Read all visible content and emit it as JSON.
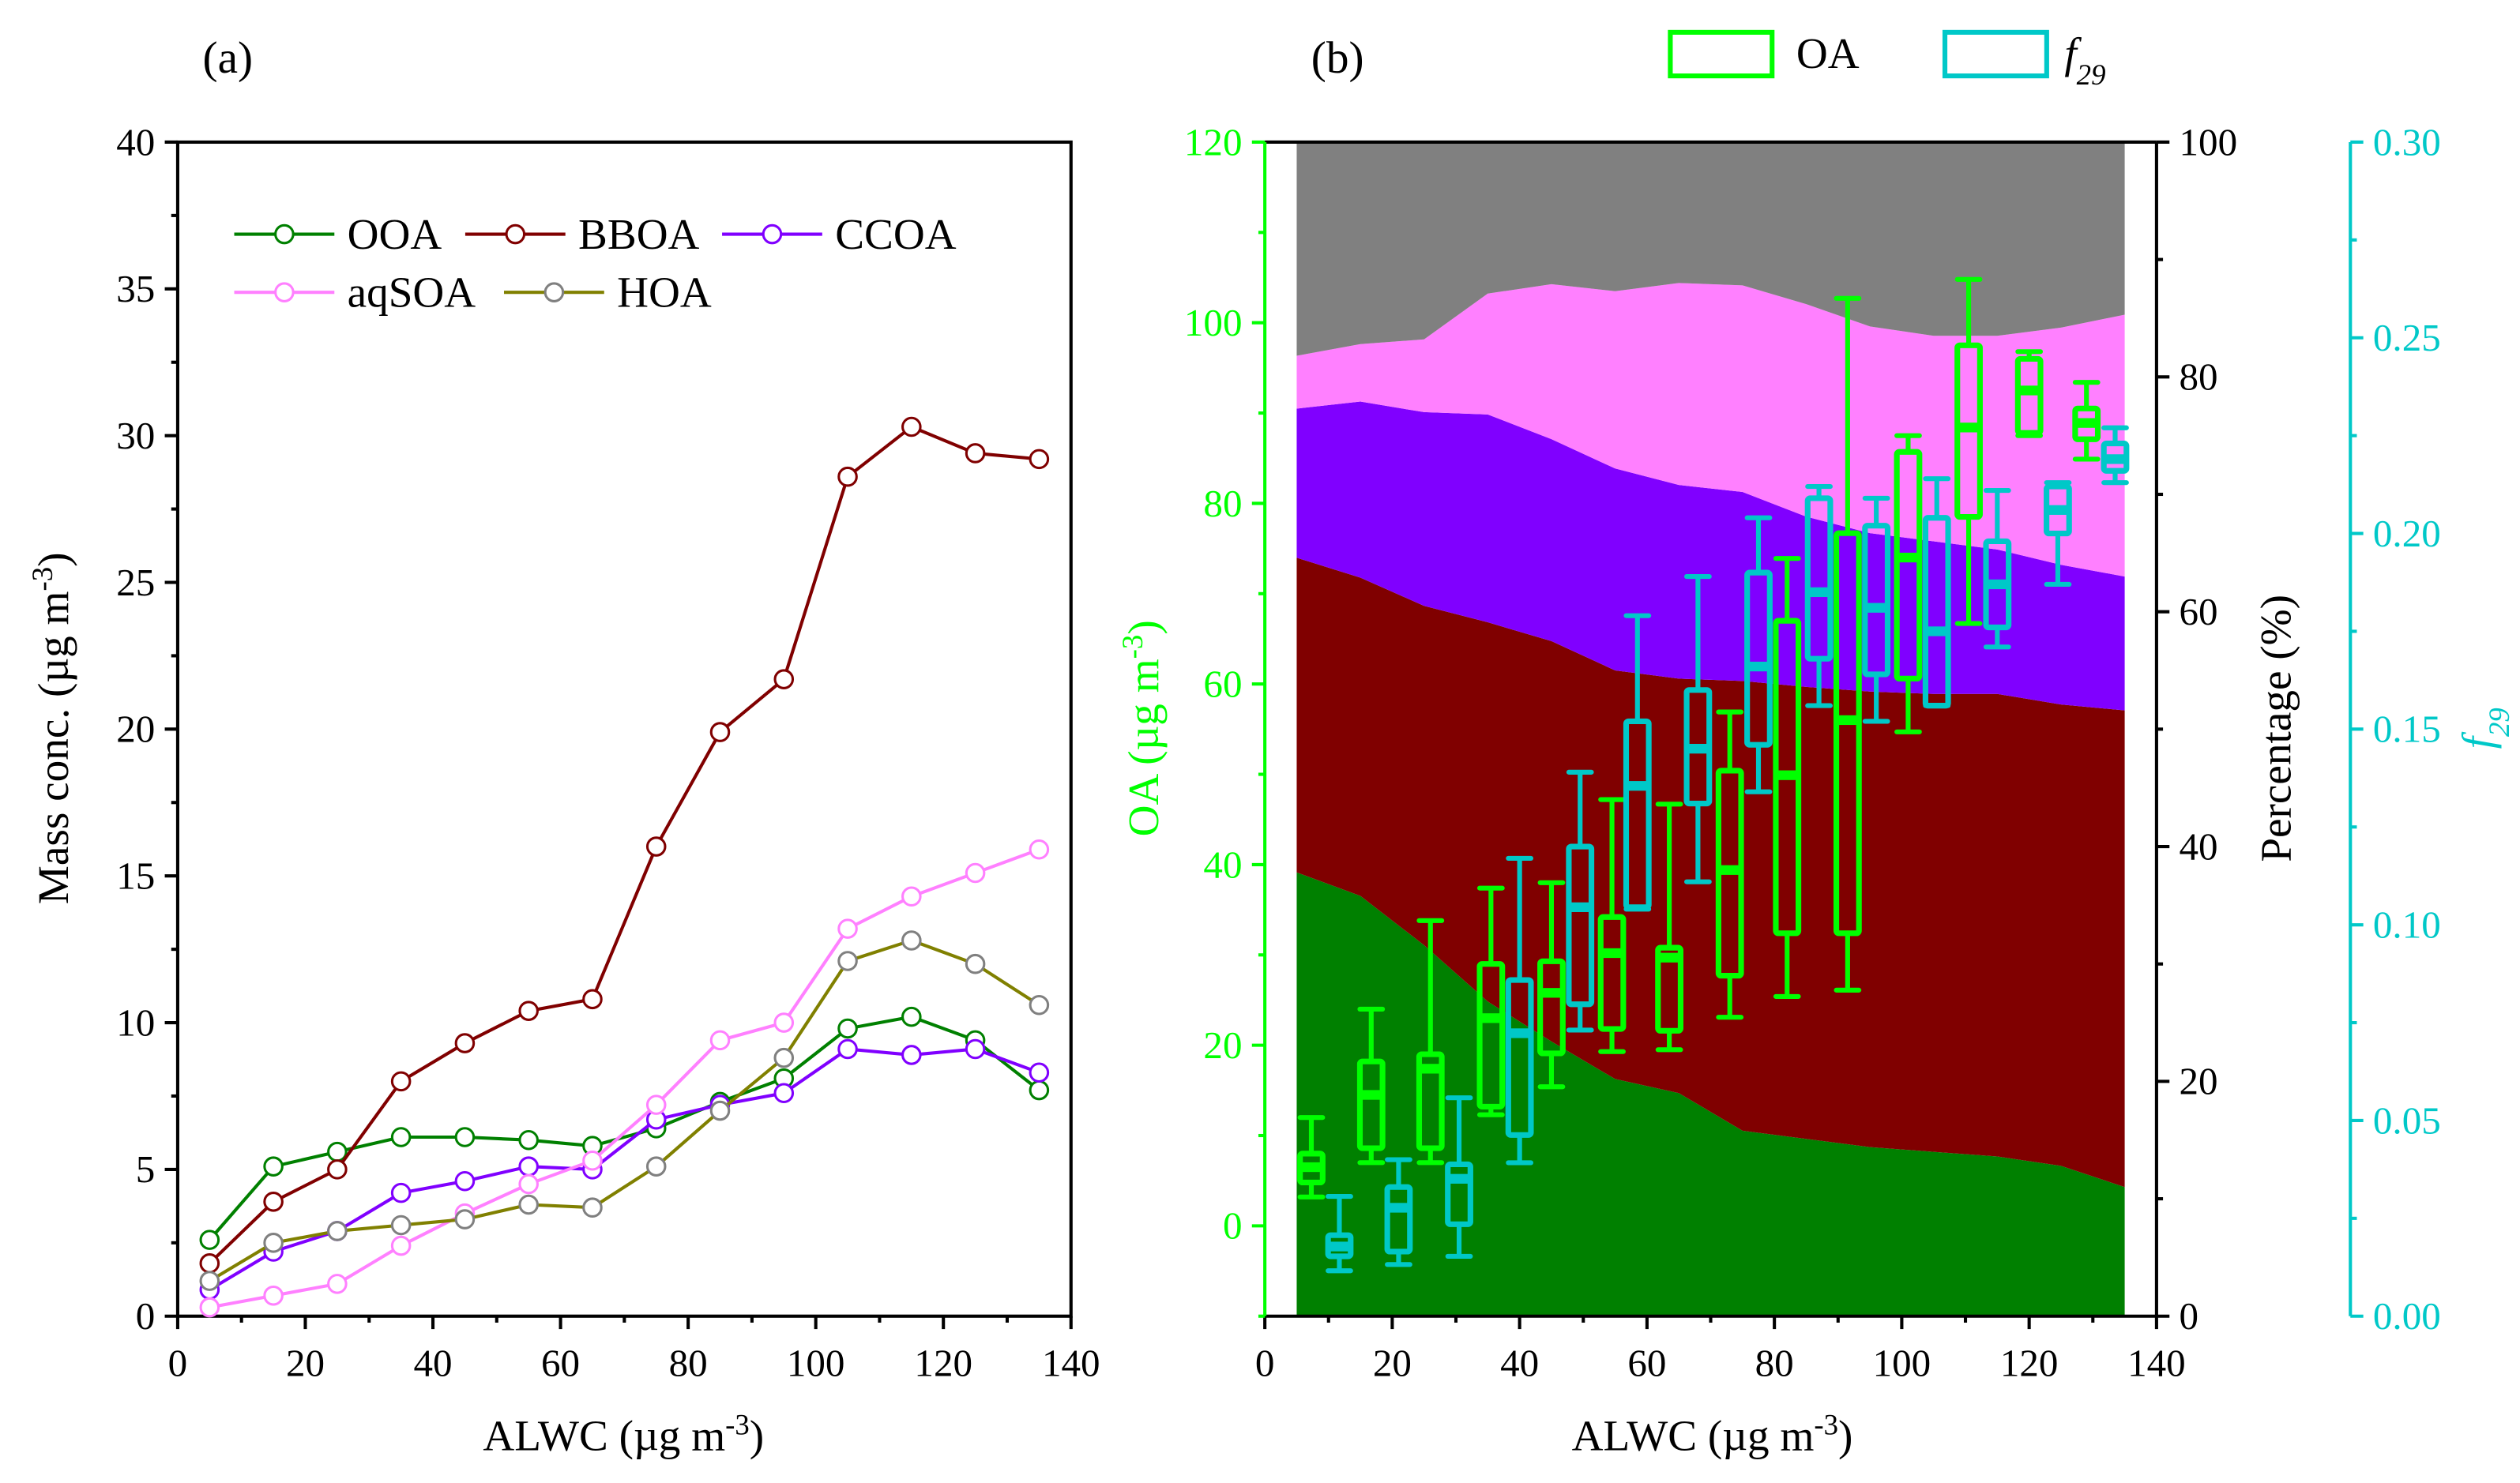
{
  "chart_data": [
    {
      "panel_label": "(a)",
      "type": "line",
      "xlabel": {
        "main": "ALWC (µg m",
        "sup": "-3",
        "end": ")"
      },
      "ylabel": {
        "main": "Mass conc. (µg m",
        "sup": "-3",
        "end": ")"
      },
      "xlim": [
        0,
        140
      ],
      "ylim": [
        0,
        40
      ],
      "xticks": [
        0,
        20,
        40,
        60,
        80,
        100,
        120,
        140
      ],
      "yticks": [
        0,
        5,
        10,
        15,
        20,
        25,
        30,
        35,
        40
      ],
      "grid": false,
      "legend": "top-left",
      "x": [
        5,
        15,
        25,
        35,
        45,
        55,
        65,
        75,
        85,
        95,
        105,
        115,
        125,
        135
      ],
      "series": [
        {
          "name": "OOA",
          "color": "#008000",
          "values": [
            2.6,
            5.1,
            5.6,
            6.1,
            6.1,
            6.0,
            5.8,
            6.4,
            7.3,
            8.1,
            9.8,
            10.2,
            9.4,
            7.7
          ]
        },
        {
          "name": "BBOA",
          "color": "#800000",
          "values": [
            1.8,
            3.9,
            5.0,
            8.0,
            9.3,
            10.4,
            10.8,
            16.0,
            19.9,
            21.7,
            28.6,
            30.3,
            29.4,
            29.2
          ]
        },
        {
          "name": "CCOA",
          "color": "#8000ff",
          "values": [
            0.9,
            2.2,
            2.9,
            4.2,
            4.6,
            5.1,
            5.0,
            6.7,
            7.2,
            7.6,
            9.1,
            8.9,
            9.1,
            8.3
          ]
        },
        {
          "name": "aqSOA",
          "color": "#ff80ff",
          "values": [
            0.3,
            0.7,
            1.1,
            2.4,
            3.5,
            4.5,
            5.3,
            7.2,
            9.4,
            10.0,
            13.2,
            14.3,
            15.1,
            15.9
          ]
        },
        {
          "name": "HOA",
          "color": "#808000",
          "values": [
            1.2,
            2.5,
            2.9,
            3.1,
            3.3,
            3.8,
            3.7,
            5.1,
            7.0,
            8.8,
            12.1,
            12.8,
            12.0,
            10.6
          ]
        }
      ]
    },
    {
      "panel_label": "(b)",
      "type": "area+box",
      "xlabel": {
        "main": "ALWC (µg m",
        "sup": "-3",
        "end": ")"
      },
      "ylabel_left": {
        "main": "OA (µg m",
        "sup": "-3",
        "end": ")"
      },
      "ylabel_right": "Percentage (%)",
      "ylabel_right2": {
        "main": "f",
        "sub": "29"
      },
      "xlim": [
        0,
        140
      ],
      "ylim_left": [
        -10,
        120
      ],
      "ylim_right": [
        0,
        100
      ],
      "ylim_right2": [
        0,
        0.3
      ],
      "xticks": [
        0,
        20,
        40,
        60,
        80,
        100,
        120,
        140
      ],
      "yticks_left": [
        0,
        20,
        40,
        60,
        80,
        100,
        120
      ],
      "yticks_right": [
        0,
        20,
        40,
        60,
        80,
        100
      ],
      "yticks_right2": [
        "0.00",
        "0.05",
        "0.10",
        "0.15",
        "0.20",
        "0.25",
        "0.30"
      ],
      "colors": {
        "left_axis": "#00ff00",
        "right2_axis": "#00c8c8"
      },
      "legend": [
        {
          "name": "OA",
          "color": "#00ff00"
        },
        {
          "name": "f29",
          "main": "f",
          "sub": "29",
          "color": "#00c8c8"
        }
      ],
      "stacked_area_percent": {
        "x": [
          5,
          15,
          25,
          35,
          45,
          55,
          65,
          75,
          85,
          95,
          105,
          115,
          125,
          135
        ],
        "layers": [
          {
            "name": "OOA",
            "color": "#008000",
            "values": [
              37.8,
              35.8,
              31.6,
              26.8,
              23.4,
              20.2,
              19.0,
              15.8,
              15.1,
              14.4,
              14.0,
              13.6,
              12.8,
              11.0
            ]
          },
          {
            "name": "BBOA",
            "color": "#800000",
            "values": [
              26.8,
              27.1,
              28.9,
              32.3,
              34.1,
              34.8,
              35.3,
              38.3,
              38.5,
              38.8,
              39.0,
              39.4,
              39.3,
              40.6
            ]
          },
          {
            "name": "CCOA",
            "color": "#8000ff",
            "values": [
              12.7,
              15.0,
              16.5,
              17.7,
              17.2,
              17.2,
              16.5,
              16.1,
              14.5,
              13.5,
              13.0,
              12.3,
              11.9,
              11.4
            ]
          },
          {
            "name": "aqSOA",
            "color": "#ff80ff",
            "values": [
              4.5,
              4.9,
              6.2,
              10.3,
              13.2,
              15.1,
              17.2,
              17.6,
              18.1,
              17.6,
              17.5,
              18.2,
              20.2,
              22.3
            ]
          },
          {
            "name": "HOA",
            "color": "#808080",
            "values": [
              18.2,
              17.2,
              16.8,
              12.9,
              12.1,
              12.7,
              12.0,
              12.2,
              13.8,
              15.7,
              16.5,
              16.5,
              15.8,
              14.7
            ]
          }
        ]
      },
      "boxes_OA": {
        "fields": [
          "x",
          "whisker_low",
          "q1",
          "median",
          "q3",
          "whisker_high"
        ],
        "rows": [
          [
            7.3,
            3.2,
            4.8,
            6.5,
            8.0,
            12.0
          ],
          [
            16.7,
            7.0,
            8.6,
            14.5,
            18.2,
            24.0
          ],
          [
            26.0,
            7.0,
            8.6,
            17.4,
            19.0,
            33.8
          ],
          [
            35.5,
            12.3,
            13.2,
            23.0,
            29.0,
            37.4
          ],
          [
            45.0,
            15.4,
            19.1,
            25.8,
            29.3,
            38.0
          ],
          [
            54.5,
            19.3,
            21.8,
            30.2,
            34.2,
            47.2
          ],
          [
            63.5,
            19.5,
            21.6,
            29.7,
            30.8,
            46.7
          ],
          [
            73.0,
            23.1,
            27.7,
            39.4,
            50.4,
            56.9
          ],
          [
            82.0,
            25.4,
            32.4,
            49.9,
            67.0,
            73.9
          ],
          [
            91.5,
            26.1,
            32.4,
            56.0,
            76.7,
            102.7
          ],
          [
            101.0,
            54.7,
            60.6,
            74.0,
            85.7,
            87.5
          ],
          [
            110.5,
            66.7,
            78.5,
            88.4,
            97.5,
            104.8
          ],
          [
            120.0,
            87.5,
            87.8,
            92.5,
            96.0,
            96.8
          ],
          [
            129.0,
            84.9,
            87.1,
            88.9,
            90.5,
            93.4
          ]
        ]
      },
      "boxes_f29": {
        "fields": [
          "x",
          "whisker_low",
          "q1",
          "median",
          "q3",
          "whisker_high"
        ],
        "rows": [
          [
            11.7,
            0.0116,
            0.0153,
            0.0178,
            0.0207,
            0.0306
          ],
          [
            21.0,
            0.0132,
            0.0165,
            0.0277,
            0.033,
            0.04
          ],
          [
            30.5,
            0.0153,
            0.0235,
            0.0351,
            0.0388,
            0.0558
          ],
          [
            40.0,
            0.0392,
            0.0463,
            0.0723,
            0.0859,
            0.117
          ],
          [
            49.5,
            0.0731,
            0.0797,
            0.1045,
            0.12,
            0.139
          ],
          [
            58.5,
            0.104,
            0.1045,
            0.1355,
            0.152,
            0.179
          ],
          [
            68.0,
            0.111,
            0.131,
            0.145,
            0.16,
            0.189
          ],
          [
            77.5,
            0.134,
            0.146,
            0.166,
            0.19,
            0.204
          ],
          [
            87.0,
            0.156,
            0.168,
            0.185,
            0.209,
            0.212
          ],
          [
            96.0,
            0.152,
            0.164,
            0.181,
            0.202,
            0.209
          ],
          [
            105.5,
            0.156,
            0.156,
            0.175,
            0.204,
            0.214
          ],
          [
            115.0,
            0.171,
            0.176,
            0.187,
            0.198,
            0.211
          ],
          [
            124.5,
            0.187,
            0.2,
            0.206,
            0.212,
            0.213
          ],
          [
            133.5,
            0.213,
            0.216,
            0.219,
            0.223,
            0.227
          ]
        ]
      }
    }
  ]
}
